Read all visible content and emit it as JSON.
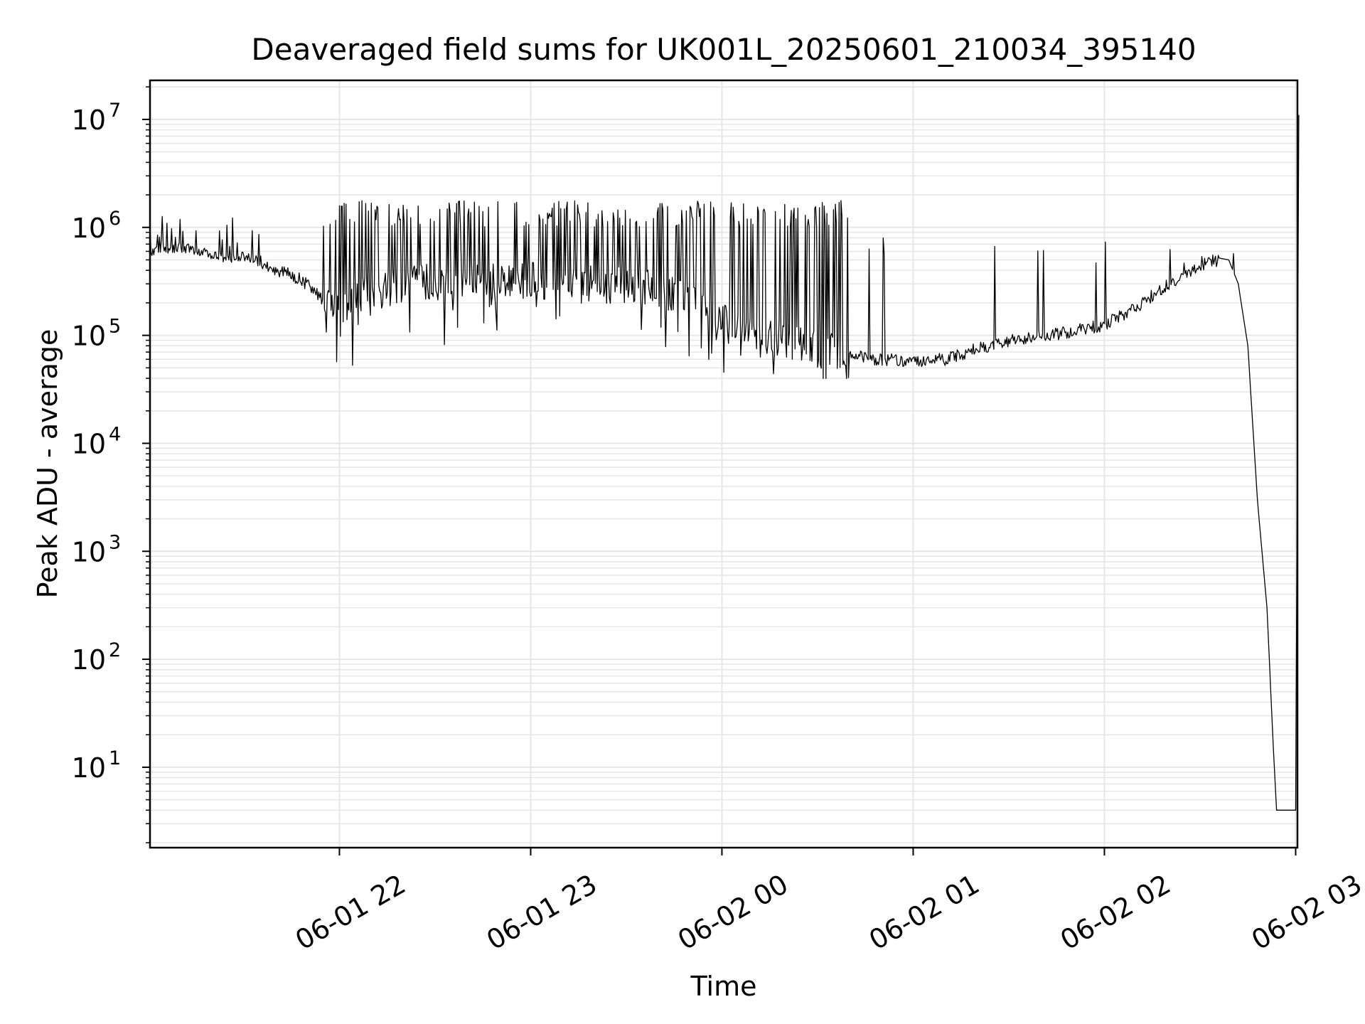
{
  "chart_data": {
    "type": "line",
    "title": "Deaveraged field sums for UK001L_20250601_210034_395140",
    "xlabel": "Time",
    "ylabel": "Peak ADU - average",
    "x_axis": "date",
    "x_range": [
      "2025-06-01 21:00:34",
      "2025-06-02 03:00:34"
    ],
    "x_ticks": [
      {
        "time": "2025-06-01 22:00",
        "label": "06-01 22"
      },
      {
        "time": "2025-06-01 23:00",
        "label": "06-01 23"
      },
      {
        "time": "2025-06-02 00:00",
        "label": "06-02 00"
      },
      {
        "time": "2025-06-02 01:00",
        "label": "06-02 01"
      },
      {
        "time": "2025-06-02 02:00",
        "label": "06-02 02"
      },
      {
        "time": "2025-06-02 03:00",
        "label": "06-02 03"
      }
    ],
    "yscale": "log",
    "ylim": [
      1.8,
      23000000
    ],
    "y_ticks": [
      {
        "value": 10,
        "base": "10",
        "exp": "1"
      },
      {
        "value": 100,
        "base": "10",
        "exp": "2"
      },
      {
        "value": 1000,
        "base": "10",
        "exp": "3"
      },
      {
        "value": 10000,
        "base": "10",
        "exp": "4"
      },
      {
        "value": 100000,
        "base": "10",
        "exp": "5"
      },
      {
        "value": 1000000,
        "base": "10",
        "exp": "6"
      },
      {
        "value": 10000000,
        "base": "10",
        "exp": "7"
      }
    ],
    "grid": true,
    "line_color": "#000000",
    "grid_color": "#e6e6e6",
    "series": [
      {
        "points": [
          [
            "2025-06-01 21:00:34",
            600000
          ],
          [
            "2025-06-01 21:05",
            620000
          ],
          [
            "2025-06-01 21:10",
            650000
          ],
          [
            "2025-06-01 21:15",
            620000
          ],
          [
            "2025-06-01 21:20",
            560000
          ],
          [
            "2025-06-01 21:25",
            520000
          ],
          [
            "2025-06-01 21:30",
            540000
          ],
          [
            "2025-06-01 21:35",
            480000
          ],
          [
            "2025-06-01 21:40",
            400000
          ],
          [
            "2025-06-01 21:45",
            360000
          ],
          [
            "2025-06-01 21:50",
            300000
          ],
          [
            "2025-06-01 21:55",
            210000
          ],
          [
            "2025-06-01 22:00",
            180000
          ],
          [
            "2025-06-01 22:10",
            250000
          ],
          [
            "2025-06-01 22:20",
            300000
          ],
          [
            "2025-06-01 22:30",
            320000
          ],
          [
            "2025-06-01 22:40",
            300000
          ],
          [
            "2025-06-01 22:50",
            320000
          ],
          [
            "2025-06-01 23:00",
            330000
          ],
          [
            "2025-06-01 23:10",
            310000
          ],
          [
            "2025-06-01 23:20",
            300000
          ],
          [
            "2025-06-01 23:30",
            290000
          ],
          [
            "2025-06-01 23:40",
            280000
          ],
          [
            "2025-06-01 23:50",
            200000
          ],
          [
            "2025-06-02 00:00",
            140000
          ],
          [
            "2025-06-02 00:10",
            110000
          ],
          [
            "2025-06-02 00:20",
            90000
          ],
          [
            "2025-06-02 00:30",
            75000
          ],
          [
            "2025-06-02 00:40",
            65000
          ],
          [
            "2025-06-02 00:50",
            60000
          ],
          [
            "2025-06-02 01:00",
            58000
          ],
          [
            "2025-06-02 01:10",
            60000
          ],
          [
            "2025-06-02 01:20",
            75000
          ],
          [
            "2025-06-02 01:30",
            90000
          ],
          [
            "2025-06-02 01:40",
            95000
          ],
          [
            "2025-06-02 01:50",
            110000
          ],
          [
            "2025-06-02 02:00",
            125000
          ],
          [
            "2025-06-02 02:10",
            180000
          ],
          [
            "2025-06-02 02:20",
            300000
          ],
          [
            "2025-06-02 02:30",
            440000
          ],
          [
            "2025-06-02 02:36",
            520000
          ],
          [
            "2025-06-02 02:39",
            500000
          ],
          [
            "2025-06-02 02:42",
            300000
          ],
          [
            "2025-06-02 02:45",
            80000
          ],
          [
            "2025-06-02 02:48",
            3000
          ],
          [
            "2025-06-02 02:51",
            300
          ],
          [
            "2025-06-02 02:53",
            15
          ],
          [
            "2025-06-02 02:54",
            4
          ],
          [
            "2025-06-02 03:00",
            4
          ],
          [
            "2025-06-02 03:01",
            11000000
          ]
        ]
      }
    ]
  }
}
